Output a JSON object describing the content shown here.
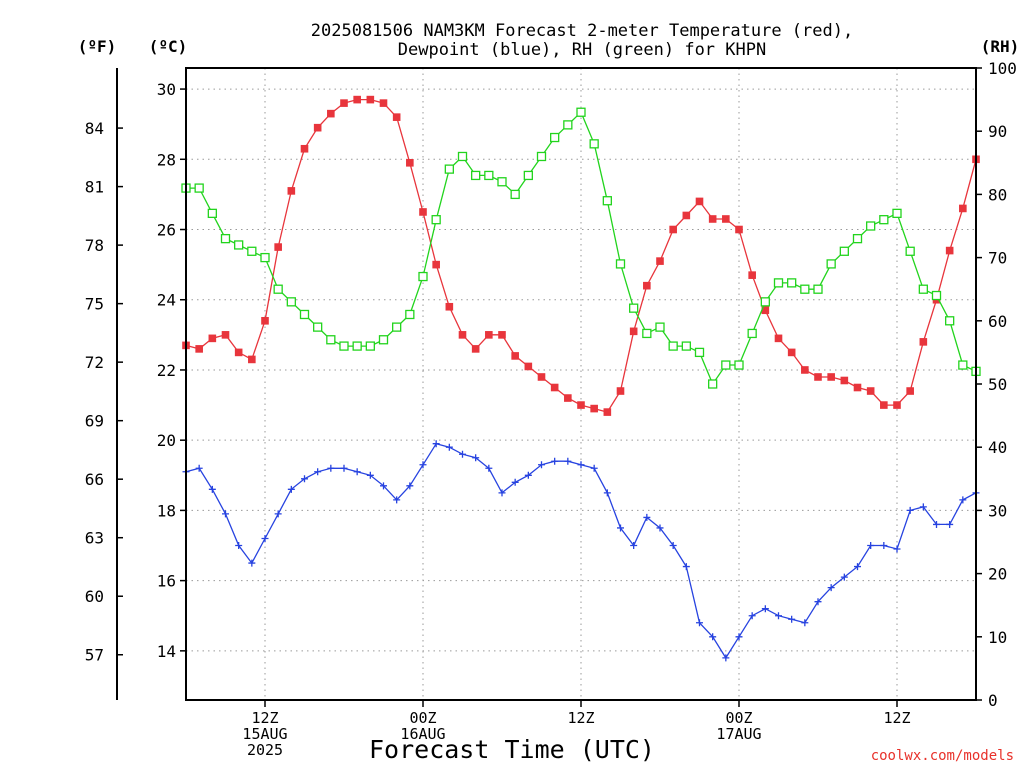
{
  "header": {
    "title_line1": "2025081506 NAM3KM Forecast 2-meter Temperature (red),",
    "title_line2": "Dewpoint (blue), RH (green) for KHPN",
    "unit_f": "(ºF)",
    "unit_c": "(ºC)",
    "unit_rh": "(RH)"
  },
  "footer": {
    "xlabel": "Forecast Time (UTC)",
    "credit": "coolwx.com/models"
  },
  "colors": {
    "temperature": "#e8353c",
    "dewpoint": "#2743e0",
    "rh": "#22d41d",
    "grid": "#9a9a9a"
  },
  "chart_data": {
    "type": "line",
    "title": "2025081506 NAM3KM Forecast 2-meter Temperature (red), Dewpoint (blue), RH (green) for KHPN",
    "xlabel": "Forecast Time (UTC)",
    "x_unit": "forecast hour from 2025-08-15 06Z",
    "xlim": [
      0,
      60
    ],
    "x_ticks": [
      {
        "hour": 6,
        "lines": [
          "12Z",
          "15AUG",
          "2025"
        ]
      },
      {
        "hour": 18,
        "lines": [
          "00Z",
          "16AUG"
        ]
      },
      {
        "hour": 30,
        "lines": [
          "12Z"
        ]
      },
      {
        "hour": 42,
        "lines": [
          "00Z",
          "17AUG"
        ]
      },
      {
        "hour": 54,
        "lines": [
          "12Z"
        ]
      }
    ],
    "y_left_c": {
      "label": "(ºC)",
      "lim": [
        12.6,
        30.6
      ],
      "ticks": [
        14,
        16,
        18,
        20,
        22,
        24,
        26,
        28,
        30
      ]
    },
    "y_left_f": {
      "label": "(ºF)",
      "ticks": [
        57,
        60,
        63,
        66,
        69,
        72,
        75,
        78,
        81,
        84
      ]
    },
    "y_right_rh": {
      "label": "(RH)",
      "lim": [
        0,
        100
      ],
      "ticks": [
        0,
        10,
        20,
        30,
        40,
        50,
        60,
        70,
        80,
        90,
        100
      ]
    },
    "grid": true,
    "series": [
      {
        "name": "Temperature",
        "units": "C",
        "marker": "filled-square",
        "x": [
          0,
          1,
          2,
          3,
          4,
          5,
          6,
          7,
          8,
          9,
          10,
          11,
          12,
          13,
          14,
          15,
          16,
          17,
          18,
          19,
          20,
          21,
          22,
          23,
          24,
          25,
          26,
          27,
          28,
          29,
          30,
          31,
          32,
          33,
          34,
          35,
          36,
          37,
          38,
          39,
          40,
          41,
          42,
          43,
          44,
          45,
          46,
          47,
          48,
          49,
          50,
          51,
          52,
          53,
          54,
          55,
          56,
          57,
          58,
          59,
          60
        ],
        "values": [
          22.7,
          22.6,
          22.9,
          23.0,
          22.5,
          22.3,
          23.4,
          25.5,
          27.1,
          28.3,
          28.9,
          29.3,
          29.6,
          29.7,
          29.7,
          29.6,
          29.2,
          27.9,
          26.5,
          25.0,
          23.8,
          23.0,
          22.6,
          23.0,
          23.0,
          22.4,
          22.1,
          21.8,
          21.5,
          21.2,
          21.0,
          20.9,
          20.8,
          21.4,
          23.1,
          24.4,
          25.1,
          26.0,
          26.4,
          26.8,
          26.3,
          26.3,
          26.0,
          24.7,
          23.7,
          22.9,
          22.5,
          22.0,
          21.8,
          21.8,
          21.7,
          21.5,
          21.4,
          21.0,
          21.0,
          21.4,
          22.8,
          24.0,
          25.4,
          26.6,
          28.0
        ]
      },
      {
        "name": "Dewpoint",
        "units": "C",
        "marker": "plus",
        "x": [
          0,
          1,
          2,
          3,
          4,
          5,
          6,
          7,
          8,
          9,
          10,
          11,
          12,
          13,
          14,
          15,
          16,
          17,
          18,
          19,
          20,
          21,
          22,
          23,
          24,
          25,
          26,
          27,
          28,
          29,
          30,
          31,
          32,
          33,
          34,
          35,
          36,
          37,
          38,
          39,
          40,
          41,
          42,
          43,
          44,
          45,
          46,
          47,
          48,
          49,
          50,
          51,
          52,
          53,
          54,
          55,
          56,
          57,
          58,
          59,
          60
        ],
        "values": [
          19.1,
          19.2,
          18.6,
          17.9,
          17.0,
          16.5,
          17.2,
          17.9,
          18.6,
          18.9,
          19.1,
          19.2,
          19.2,
          19.1,
          19.0,
          18.7,
          18.3,
          18.7,
          19.3,
          19.9,
          19.8,
          19.6,
          19.5,
          19.2,
          18.5,
          18.8,
          19.0,
          19.3,
          19.4,
          19.4,
          19.3,
          19.2,
          18.5,
          17.5,
          17.0,
          17.8,
          17.5,
          17.0,
          16.4,
          14.8,
          14.4,
          13.8,
          14.4,
          15.0,
          15.2,
          15.0,
          14.9,
          14.8,
          15.4,
          15.8,
          16.1,
          16.4,
          17.0,
          17.0,
          16.9,
          18.0,
          18.1,
          17.6,
          17.6,
          18.3,
          18.5
        ]
      },
      {
        "name": "RH",
        "units": "%",
        "marker": "open-square",
        "x": [
          0,
          1,
          2,
          3,
          4,
          5,
          6,
          7,
          8,
          9,
          10,
          11,
          12,
          13,
          14,
          15,
          16,
          17,
          18,
          19,
          20,
          21,
          22,
          23,
          24,
          25,
          26,
          27,
          28,
          29,
          30,
          31,
          32,
          33,
          34,
          35,
          36,
          37,
          38,
          39,
          40,
          41,
          42,
          43,
          44,
          45,
          46,
          47,
          48,
          49,
          50,
          51,
          52,
          53,
          54,
          55,
          56,
          57,
          58,
          59,
          60
        ],
        "values": [
          81,
          81,
          77,
          73,
          72,
          71,
          70,
          65,
          63,
          61,
          59,
          57,
          56,
          56,
          56,
          57,
          59,
          61,
          67,
          76,
          84,
          86,
          83,
          83,
          82,
          80,
          83,
          86,
          89,
          91,
          93,
          88,
          79,
          69,
          62,
          58,
          59,
          56,
          56,
          55,
          50,
          53,
          53,
          58,
          63,
          66,
          66,
          65,
          65,
          69,
          71,
          73,
          75,
          76,
          77,
          71,
          65,
          64,
          60,
          53,
          52
        ]
      }
    ]
  }
}
